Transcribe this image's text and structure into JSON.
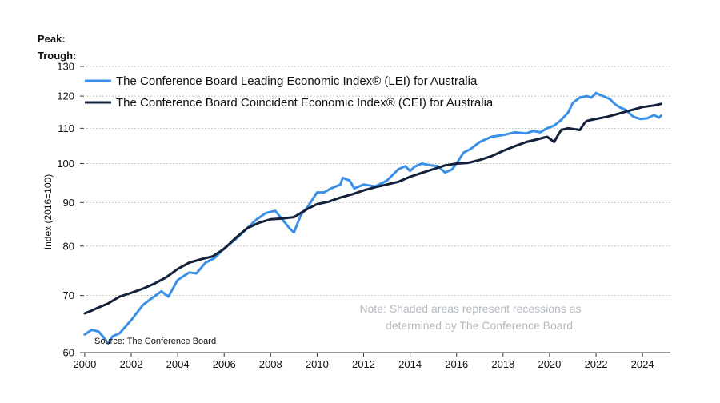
{
  "peak_trough": {
    "peak_label": "Peak:",
    "trough_label": "Trough:"
  },
  "chart_data": {
    "type": "line",
    "title": "",
    "xlabel": "",
    "ylabel": "Index (2016=100)",
    "y_scale": "log",
    "ylim": [
      60,
      130
    ],
    "xlim": [
      1999.9,
      2025.2
    ],
    "y_ticks": [
      60,
      70,
      80,
      90,
      100,
      110,
      120,
      130
    ],
    "x_ticks": [
      2000,
      2002,
      2004,
      2006,
      2008,
      2010,
      2012,
      2014,
      2016,
      2018,
      2020,
      2022,
      2024
    ],
    "grid": "horizontal dashed",
    "legend_position": "top-left",
    "note": [
      "Note: Shaded areas represent recessions as",
      "determined by The Conference Board."
    ],
    "source": "Source: The Conference Board",
    "series": [
      {
        "name": "The Conference Board Leading Economic Index® (LEI) for Australia",
        "color": "#3a8fe6",
        "x": [
          2000.0,
          2000.3,
          2000.6,
          2000.8,
          2001.0,
          2001.2,
          2001.5,
          2002.0,
          2002.5,
          2002.8,
          2003.3,
          2003.6,
          2004.0,
          2004.5,
          2004.8,
          2005.2,
          2005.6,
          2006.0,
          2006.5,
          2007.0,
          2007.4,
          2007.8,
          2008.2,
          2008.5,
          2008.8,
          2009.0,
          2009.3,
          2009.6,
          2010.0,
          2010.3,
          2010.6,
          2011.0,
          2011.1,
          2011.4,
          2011.6,
          2012.0,
          2012.5,
          2013.0,
          2013.5,
          2013.8,
          2014.0,
          2014.2,
          2014.5,
          2014.9,
          2015.2,
          2015.5,
          2015.8,
          2016.0,
          2016.3,
          2016.6,
          2017.0,
          2017.5,
          2018.0,
          2018.5,
          2019.0,
          2019.3,
          2019.6,
          2019.9,
          2020.2,
          2020.5,
          2020.8,
          2021.0,
          2021.3,
          2021.6,
          2021.8,
          2022.0,
          2022.3,
          2022.6,
          2022.8,
          2023.0,
          2023.3,
          2023.6,
          2023.9,
          2024.2,
          2024.5,
          2024.7,
          2024.8
        ],
        "values": [
          63,
          63.8,
          63.5,
          62.6,
          61.5,
          62.7,
          63.2,
          65.5,
          68.2,
          69.2,
          70.8,
          69.8,
          73,
          74.5,
          74.3,
          76.5,
          77.5,
          79.5,
          81.5,
          84,
          86,
          87.5,
          88,
          86,
          84,
          83,
          87,
          89,
          92.5,
          92.5,
          93.5,
          94.5,
          96.2,
          95.5,
          93.5,
          94.5,
          94,
          95.5,
          98.5,
          99.3,
          98,
          99.2,
          100,
          99.5,
          99.3,
          97.6,
          98.4,
          100,
          103,
          104,
          106,
          107.5,
          108,
          108.8,
          108.5,
          109.2,
          108.8,
          110,
          110.8,
          112.5,
          114.8,
          117.8,
          119.5,
          120,
          119.5,
          121,
          120,
          119,
          117.5,
          116.5,
          115.5,
          113.5,
          112.8,
          113,
          114,
          113.2,
          113.8
        ]
      },
      {
        "name": "The Conference Board Coincident Economic Index® (CEI) for Australia",
        "color": "#14213a",
        "x": [
          2000.0,
          2000.3,
          2000.5,
          2001.0,
          2001.5,
          2002.0,
          2002.5,
          2003.0,
          2003.5,
          2004.0,
          2004.5,
          2005.0,
          2005.5,
          2006.0,
          2006.5,
          2007.0,
          2007.5,
          2008.0,
          2008.5,
          2009.0,
          2009.3,
          2009.6,
          2010.0,
          2010.5,
          2011.0,
          2011.5,
          2012.0,
          2012.5,
          2013.0,
          2013.5,
          2014.0,
          2014.5,
          2015.0,
          2015.5,
          2016.0,
          2016.5,
          2017.0,
          2017.5,
          2018.0,
          2018.5,
          2019.0,
          2019.5,
          2019.9,
          2020.2,
          2020.35,
          2020.5,
          2020.8,
          2021.0,
          2021.3,
          2021.5,
          2021.6,
          2021.8,
          2022.0,
          2022.5,
          2023.0,
          2023.5,
          2024.0,
          2024.5,
          2024.8
        ],
        "values": [
          66.7,
          67.2,
          67.6,
          68.5,
          69.8,
          70.5,
          71.3,
          72.3,
          73.5,
          75.2,
          76.5,
          77.2,
          77.8,
          79.4,
          81.8,
          84.0,
          85.2,
          86.0,
          86.2,
          86.5,
          87.5,
          88.5,
          89.6,
          90.2,
          91.2,
          92.0,
          93.0,
          93.8,
          94.5,
          95.2,
          96.5,
          97.5,
          98.5,
          99.5,
          100.0,
          100.2,
          101.0,
          102.0,
          103.5,
          104.8,
          106.0,
          106.8,
          107.5,
          106.0,
          107.8,
          109.5,
          110.0,
          109.8,
          109.5,
          111.5,
          112.2,
          112.5,
          112.8,
          113.5,
          114.5,
          115.5,
          116.5,
          117.0,
          117.5
        ]
      }
    ]
  }
}
